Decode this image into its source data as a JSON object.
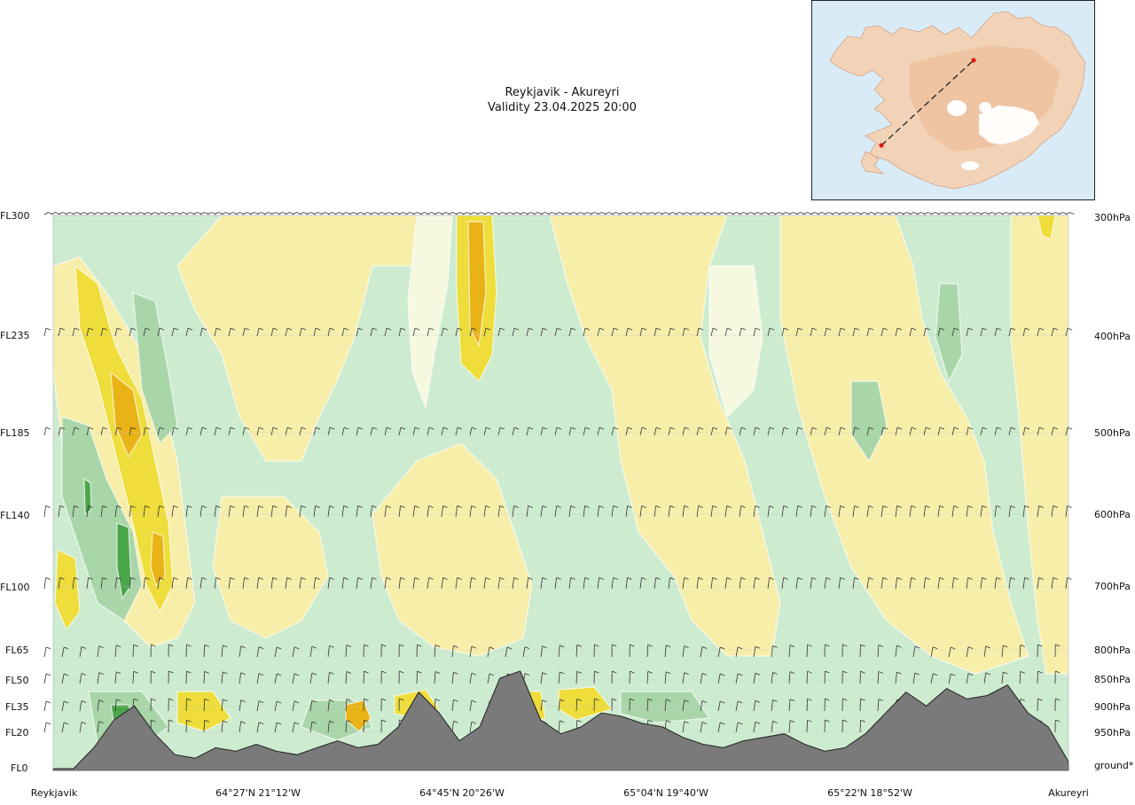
{
  "chart_data": {
    "type": "cross-section",
    "title": "Reykjavik - Akureyri",
    "subtitle": "Validity 23.04.2025 20:00",
    "left_axis_labels": [
      "FL300",
      "FL235",
      "FL185",
      "FL140",
      "FL100",
      "FL65",
      "FL50",
      "FL35",
      "FL20",
      "FL0"
    ],
    "right_axis_labels": [
      "300hPa",
      "400hPa",
      "500hPa",
      "600hPa",
      "700hPa",
      "800hPa",
      "850hPa",
      "900hPa",
      "950hPa",
      "ground*"
    ],
    "x_labels": [
      "Reykjavik",
      "64°27'N 21°12'W",
      "64°45'N 20°26'W",
      "65°04'N 19°40'W",
      "65°22'N 18°52'W",
      "Akureyri"
    ],
    "route": {
      "from": "Reykjavik",
      "to": "Akureyri"
    },
    "pressure_levels_hpa": [
      300,
      400,
      500,
      600,
      700,
      800,
      850,
      900,
      950
    ],
    "flight_levels": [
      300,
      235,
      185,
      140,
      100,
      65,
      50,
      35,
      20,
      0
    ],
    "terrain_profile_m": [
      0,
      0,
      300,
      700,
      900,
      500,
      200,
      150,
      300,
      250,
      350,
      250,
      200,
      300,
      400,
      300,
      350,
      600,
      1100,
      800,
      400,
      600,
      1300,
      1400,
      700,
      500,
      600,
      800,
      750,
      650,
      600,
      450,
      350,
      300,
      400,
      450,
      500,
      350,
      250,
      300,
      500,
      800,
      1100,
      900,
      1150,
      1000,
      1050,
      1200,
      800,
      600,
      100
    ],
    "colors": {
      "terrain": "#7a7a7a",
      "band_dark_green": "#4aa64a",
      "band_mid_green": "#a9d6a9",
      "band_light_green": "#cdebcf",
      "band_pale": "#f6f9e0",
      "band_light_yellow": "#f7eeaa",
      "band_yellow": "#eedd3a",
      "band_orange": "#e9b317",
      "sea": "#d9ebf7",
      "land": "#f2cdb0",
      "route_marker": "#e01a1a"
    }
  }
}
